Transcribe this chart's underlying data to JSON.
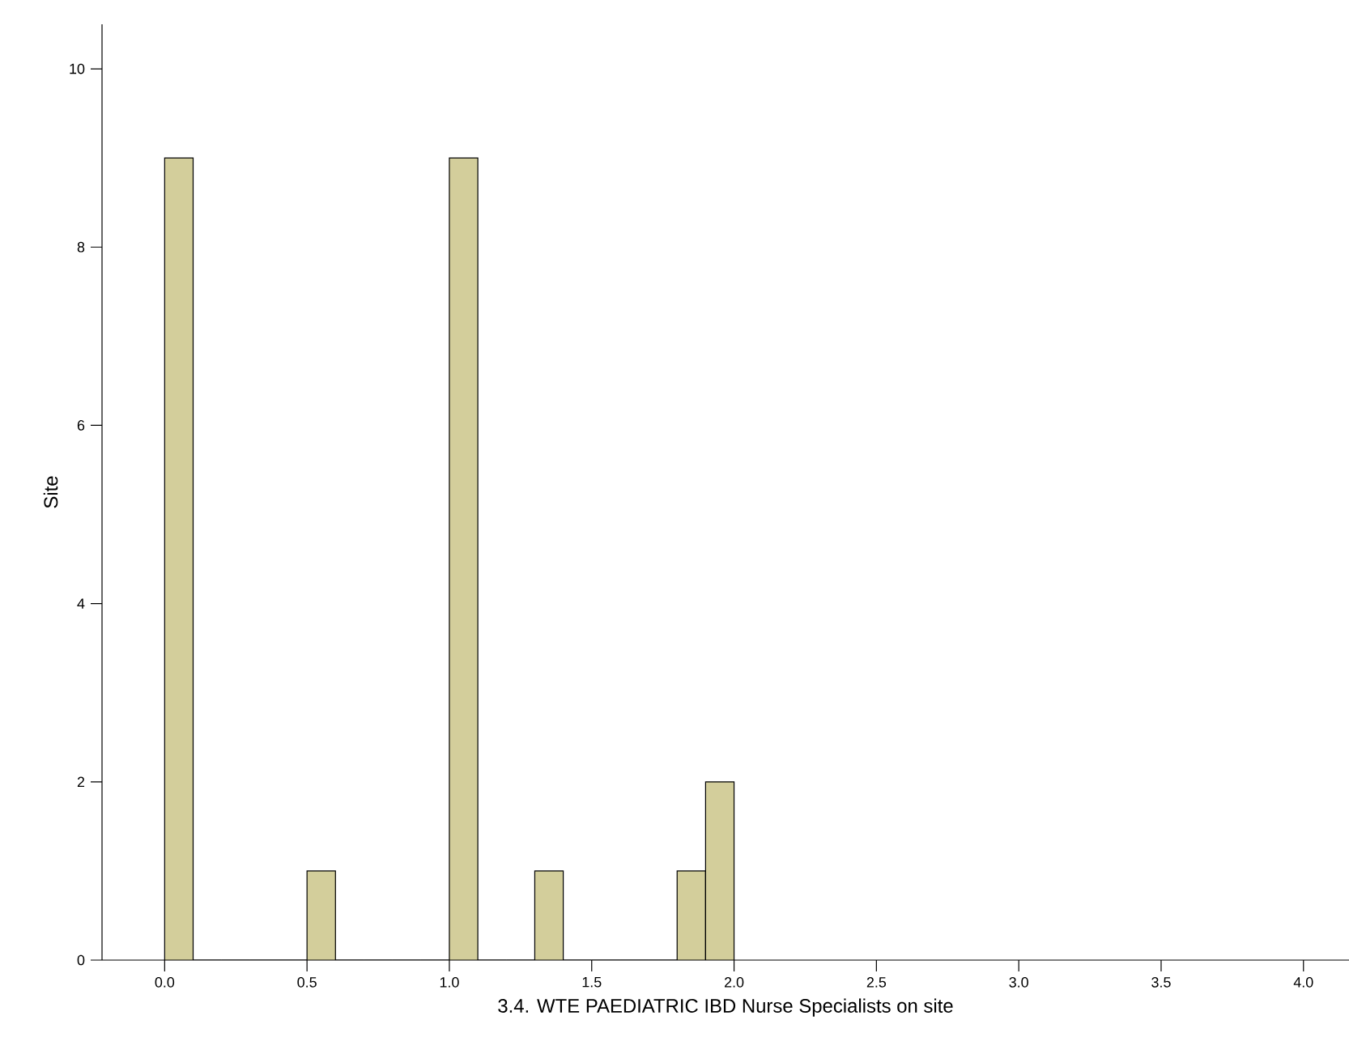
{
  "chart_data": {
    "type": "histogram",
    "xlabel": "3.4.  WTE PAEDIATRIC IBD Nurse Specialists on site",
    "ylabel": "Site",
    "bins": [
      0.0,
      0.1,
      0.2,
      0.3,
      0.4,
      0.5,
      0.6,
      0.7,
      0.8,
      0.9,
      1.0,
      1.1,
      1.2,
      1.3,
      1.4,
      1.5,
      1.6,
      1.7,
      1.8,
      1.9,
      2.0
    ],
    "values": [
      9,
      0,
      0,
      0,
      0,
      1,
      0,
      0,
      0,
      0,
      9,
      0,
      0,
      1,
      0,
      0,
      0,
      0,
      1,
      2
    ],
    "color": "#d3ce9b",
    "xlim": [
      -0.22,
      4.16
    ],
    "ylim": [
      0,
      10.5
    ],
    "xticks": [
      {
        "value": 0,
        "label": "0.0"
      },
      {
        "value": 0.5,
        "label": "0.5"
      },
      {
        "value": 1,
        "label": "1.0"
      },
      {
        "value": 1.5,
        "label": "1.5"
      },
      {
        "value": 2,
        "label": "2.0"
      },
      {
        "value": 2.5,
        "label": "2.5"
      },
      {
        "value": 3,
        "label": "3.0"
      },
      {
        "value": 3.5,
        "label": "3.5"
      },
      {
        "value": 4,
        "label": "4.0"
      }
    ],
    "yticks": [
      0,
      2,
      4,
      6,
      8,
      10
    ]
  }
}
